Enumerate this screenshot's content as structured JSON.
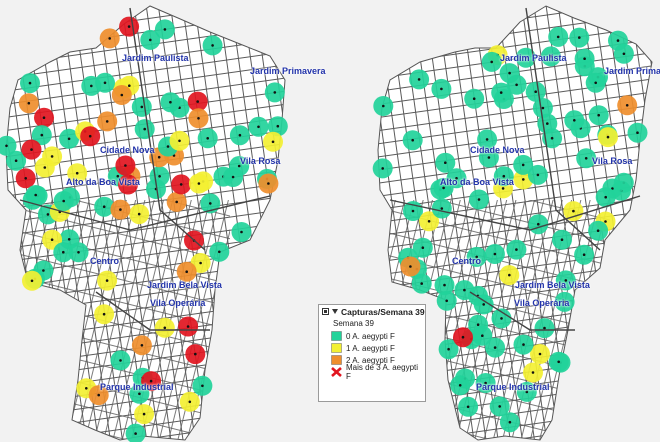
{
  "map_left": {
    "labels": [
      "Jardim Paulista",
      "Jardim Primavera",
      "Cidade Nova",
      "Vila Rosa",
      "Alto da Boa Vista",
      "Centro",
      "Jardim Bela Vista",
      "Vila Operária",
      "Parque Industrial"
    ]
  },
  "map_right": {
    "labels": [
      "Jardim Paulista",
      "Jardim Primavera",
      "Cidade Nova",
      "Vila Rosa",
      "Alto da Boa Vista",
      "Centro",
      "Jardim Bela Vista",
      "Vila Operária",
      "Parque Industrial"
    ]
  },
  "legend": {
    "title": "Capturas/Semana 39",
    "subtitle": "Semana 39",
    "items": [
      {
        "label": "0 A. aegypti F",
        "color": "#22d39a"
      },
      {
        "label": "1 A. aegypti F",
        "color": "#f3f032"
      },
      {
        "label": "2 A. aegypti F",
        "color": "#ef8e2c"
      },
      {
        "label": "Mais de 3 A. aegypti F",
        "color": "#e1151f"
      }
    ]
  },
  "colors": {
    "background": "#f2f2f2",
    "streets": "#5a5a5a",
    "label_text": "#2233aa",
    "level_0": "#22d39a",
    "level_1": "#f3f032",
    "level_2": "#ef8e2c",
    "level_3": "#e1151f"
  }
}
